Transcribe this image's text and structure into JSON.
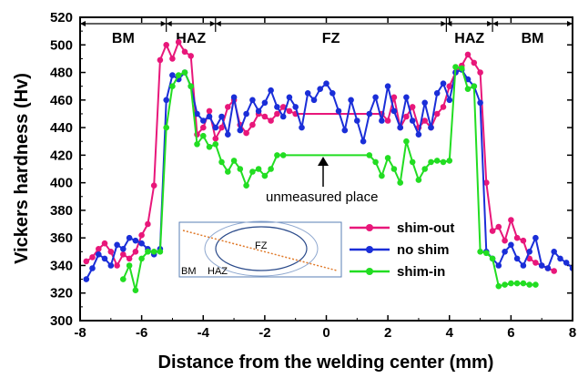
{
  "chart_data": {
    "type": "line",
    "title": "",
    "xlabel": "Distance from the  welding center (mm)",
    "ylabel": "Vickers hardness (Hv)",
    "xlim": [
      -8,
      8
    ],
    "ylim": [
      300,
      520
    ],
    "xticks": [
      -8,
      -6,
      -4,
      -2,
      0,
      2,
      4,
      6,
      8
    ],
    "yticks": [
      300,
      320,
      340,
      360,
      380,
      400,
      420,
      440,
      460,
      480,
      500,
      520
    ],
    "zones": [
      {
        "label": "BM",
        "x0": -8,
        "x1": -5.2
      },
      {
        "label": "HAZ",
        "x0": -5.2,
        "x1": -3.6
      },
      {
        "label": "FZ",
        "x0": -3.6,
        "x1": 3.9
      },
      {
        "label": "HAZ",
        "x0": 3.9,
        "x1": 5.4
      },
      {
        "label": "BM",
        "x0": 5.4,
        "x1": 8
      }
    ],
    "annotation": {
      "text": "unmeasured place",
      "x": 0,
      "y": 420
    },
    "inset_labels": {
      "fz": "FZ",
      "bm": "BM",
      "haz": "HAZ"
    },
    "legend_position": "lower-right",
    "series": [
      {
        "name": "shim-out",
        "color": "#e8177a",
        "x": [
          -7.8,
          -7.6,
          -7.4,
          -7.2,
          -7.0,
          -6.8,
          -6.6,
          -6.4,
          -6.2,
          -6.0,
          -5.8,
          -5.6,
          -5.4,
          -5.2,
          -5.0,
          -4.8,
          -4.6,
          -4.4,
          -4.2,
          -4.0,
          -3.8,
          -3.6,
          -3.4,
          -3.2,
          -3.0,
          -2.8,
          -2.6,
          -2.4,
          -2.2,
          -2.0,
          -1.8,
          -1.6,
          -1.4,
          -1.2,
          -1.0,
          1.8,
          2.0,
          2.2,
          2.4,
          2.6,
          2.8,
          3.0,
          3.2,
          3.4,
          3.6,
          3.8,
          4.0,
          4.2,
          4.4,
          4.6,
          4.8,
          5.0,
          5.2,
          5.4,
          5.6,
          5.8,
          6.0,
          6.2,
          6.4,
          6.6,
          6.8,
          7.0,
          7.2,
          7.4
        ],
        "y": [
          343,
          346,
          352,
          356,
          350,
          340,
          348,
          345,
          350,
          362,
          370,
          398,
          489,
          500,
          490,
          502,
          495,
          492,
          435,
          440,
          452,
          432,
          440,
          455,
          460,
          442,
          436,
          442,
          450,
          448,
          445,
          450,
          455,
          452,
          450,
          450,
          445,
          462,
          440,
          448,
          455,
          440,
          445,
          440,
          450,
          455,
          470,
          480,
          485,
          493,
          487,
          480,
          400,
          365,
          368,
          358,
          373,
          360,
          358,
          345,
          342,
          340,
          338,
          336
        ]
      },
      {
        "name": "no shim",
        "color": "#1a2ed8",
        "x": [
          -7.8,
          -7.6,
          -7.4,
          -7.2,
          -7.0,
          -6.8,
          -6.6,
          -6.4,
          -6.2,
          -6.0,
          -5.8,
          -5.6,
          -5.4,
          -5.2,
          -5.0,
          -4.8,
          -4.6,
          -4.4,
          -4.2,
          -4.0,
          -3.8,
          -3.6,
          -3.4,
          -3.2,
          -3.0,
          -2.8,
          -2.6,
          -2.4,
          -2.2,
          -2.0,
          -1.8,
          -1.6,
          -1.4,
          -1.2,
          -1.0,
          -0.8,
          -0.6,
          -0.4,
          -0.2,
          0.0,
          0.2,
          0.4,
          0.6,
          0.8,
          1.0,
          1.2,
          1.4,
          1.6,
          1.8,
          2.0,
          2.2,
          2.4,
          2.6,
          2.8,
          3.0,
          3.2,
          3.4,
          3.6,
          3.8,
          4.0,
          4.2,
          4.4,
          4.6,
          4.8,
          5.0,
          5.2,
          5.4,
          5.6,
          5.8,
          6.0,
          6.2,
          6.4,
          6.6,
          6.8,
          7.0,
          7.2,
          7.4,
          7.6,
          7.8,
          8.0
        ],
        "y": [
          330,
          338,
          348,
          345,
          340,
          355,
          352,
          360,
          358,
          356,
          352,
          348,
          352,
          460,
          478,
          475,
          480,
          470,
          450,
          445,
          448,
          440,
          448,
          435,
          462,
          438,
          450,
          460,
          452,
          458,
          467,
          455,
          448,
          462,
          455,
          440,
          465,
          460,
          468,
          472,
          465,
          452,
          438,
          460,
          445,
          430,
          450,
          462,
          445,
          470,
          452,
          440,
          462,
          445,
          435,
          458,
          440,
          465,
          472,
          460,
          480,
          482,
          475,
          470,
          458,
          350,
          345,
          340,
          350,
          355,
          345,
          340,
          350,
          360,
          340,
          338,
          350,
          345,
          342,
          338
        ]
      },
      {
        "name": "shim-in",
        "color": "#22dd22",
        "x": [
          -6.6,
          -6.4,
          -6.2,
          -6.0,
          -5.8,
          -5.6,
          -5.4,
          -5.2,
          -5.0,
          -4.8,
          -4.6,
          -4.4,
          -4.2,
          -4.0,
          -3.8,
          -3.6,
          -3.4,
          -3.2,
          -3.0,
          -2.8,
          -2.6,
          -2.4,
          -2.2,
          -2.0,
          -1.8,
          -1.6,
          -1.4,
          1.4,
          1.6,
          1.8,
          2.0,
          2.2,
          2.4,
          2.6,
          2.8,
          3.0,
          3.2,
          3.4,
          3.6,
          3.8,
          4.0,
          4.2,
          4.4,
          4.6,
          4.8,
          5.0,
          5.2,
          5.4,
          5.6,
          5.8,
          6.0,
          6.2,
          6.4,
          6.6,
          6.8
        ],
        "y": [
          330,
          340,
          322,
          345,
          350,
          350,
          350,
          440,
          470,
          478,
          480,
          470,
          428,
          434,
          426,
          428,
          415,
          408,
          416,
          410,
          398,
          408,
          410,
          405,
          410,
          420,
          420,
          420,
          415,
          405,
          418,
          410,
          400,
          430,
          415,
          402,
          410,
          415,
          416,
          415,
          416,
          484,
          483,
          468,
          470,
          350,
          349,
          345,
          325,
          326,
          327,
          327,
          327,
          326,
          326
        ]
      }
    ]
  }
}
